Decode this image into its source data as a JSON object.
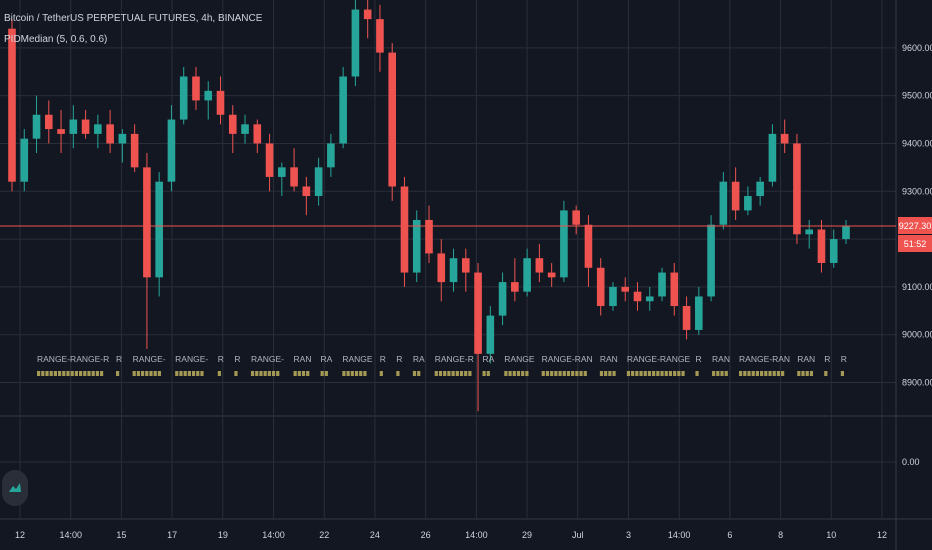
{
  "legend": {
    "symbol_line": "Bitcoin / TetherUS PERPETUAL FUTURES, 4h, BINANCE",
    "indicator_line": "PIDMedian (5, 0.6, 0.6)"
  },
  "price_axis": {
    "ticks": [
      "9600.00",
      "9500.00",
      "9400.00",
      "9300.00",
      "9200.00",
      "9100.00",
      "9000.00",
      "8900.00"
    ],
    "current_price": "9227.30",
    "countdown": "51:52",
    "current_price_color": "#ef5350"
  },
  "indicator_axis": {
    "ticks": [
      "0.00"
    ]
  },
  "time_axis": {
    "ticks": [
      "12",
      "14:00",
      "15",
      "17",
      "19",
      "14:00",
      "22",
      "24",
      "26",
      "14:00",
      "29",
      "Jul",
      "3",
      "14:00",
      "6",
      "8",
      "10",
      "12"
    ]
  },
  "range_labels": [
    "RANGE-RANGE-R",
    "R",
    "RANGE-",
    "RANGE-",
    "R",
    "R",
    "RANGE-",
    "RAN",
    "RA",
    "RANGE",
    "R",
    "R",
    "RA",
    "RANGE-R",
    "RA",
    "RANGE",
    "RANGE-RAN",
    "RAN",
    "RANGE-RANGE",
    "R",
    "RAN",
    "RANGE-RAN",
    "RAN",
    "R",
    "R"
  ],
  "colors": {
    "background": "#131722",
    "grid": "#2a2e39",
    "up": "#26a69a",
    "down": "#ef5350",
    "range_text": "#b2b5be",
    "range_marker": "#a59a55",
    "axis_text": "#d1d4dc"
  },
  "icons": {
    "logo": "tradingview-logo-icon"
  },
  "chart_data": {
    "type": "candlestick",
    "symbol": "Bitcoin / TetherUS PERPETUAL FUTURES",
    "interval": "4h",
    "exchange": "BINANCE",
    "ylim": [
      8830,
      9700
    ],
    "grid": true,
    "last_price": 9227.3,
    "candles": [
      [
        9640,
        9660,
        9300,
        9320
      ],
      [
        9320,
        9430,
        9300,
        9410
      ],
      [
        9410,
        9500,
        9380,
        9460
      ],
      [
        9460,
        9490,
        9400,
        9430
      ],
      [
        9430,
        9470,
        9380,
        9420
      ],
      [
        9420,
        9480,
        9390,
        9450
      ],
      [
        9450,
        9470,
        9410,
        9420
      ],
      [
        9420,
        9460,
        9390,
        9440
      ],
      [
        9440,
        9470,
        9380,
        9400
      ],
      [
        9400,
        9430,
        9360,
        9420
      ],
      [
        9420,
        9440,
        9340,
        9350
      ],
      [
        9350,
        9380,
        8970,
        9120
      ],
      [
        9120,
        9340,
        9080,
        9320
      ],
      [
        9320,
        9480,
        9300,
        9450
      ],
      [
        9450,
        9560,
        9440,
        9540
      ],
      [
        9540,
        9560,
        9470,
        9490
      ],
      [
        9490,
        9530,
        9450,
        9510
      ],
      [
        9510,
        9540,
        9440,
        9460
      ],
      [
        9460,
        9480,
        9380,
        9420
      ],
      [
        9420,
        9460,
        9400,
        9440
      ],
      [
        9440,
        9450,
        9380,
        9400
      ],
      [
        9400,
        9420,
        9300,
        9330
      ],
      [
        9330,
        9360,
        9290,
        9350
      ],
      [
        9350,
        9390,
        9300,
        9310
      ],
      [
        9310,
        9330,
        9250,
        9290
      ],
      [
        9290,
        9370,
        9270,
        9350
      ],
      [
        9350,
        9420,
        9330,
        9400
      ],
      [
        9400,
        9560,
        9390,
        9540
      ],
      [
        9540,
        9700,
        9520,
        9680
      ],
      [
        9680,
        9700,
        9620,
        9660
      ],
      [
        9660,
        9690,
        9550,
        9590
      ],
      [
        9590,
        9610,
        9280,
        9310
      ],
      [
        9310,
        9330,
        9100,
        9130
      ],
      [
        9130,
        9260,
        9110,
        9240
      ],
      [
        9240,
        9270,
        9150,
        9170
      ],
      [
        9170,
        9200,
        9070,
        9110
      ],
      [
        9110,
        9180,
        9090,
        9160
      ],
      [
        9160,
        9180,
        9090,
        9130
      ],
      [
        9130,
        9150,
        8840,
        8960
      ],
      [
        8960,
        9060,
        8940,
        9040
      ],
      [
        9040,
        9130,
        9020,
        9110
      ],
      [
        9110,
        9160,
        9070,
        9090
      ],
      [
        9090,
        9180,
        9080,
        9160
      ],
      [
        9160,
        9190,
        9110,
        9130
      ],
      [
        9130,
        9150,
        9100,
        9120
      ],
      [
        9120,
        9280,
        9110,
        9260
      ],
      [
        9260,
        9270,
        9210,
        9230
      ],
      [
        9230,
        9250,
        9100,
        9140
      ],
      [
        9140,
        9160,
        9040,
        9060
      ],
      [
        9060,
        9110,
        9050,
        9100
      ],
      [
        9100,
        9120,
        9070,
        9090
      ],
      [
        9090,
        9110,
        9050,
        9070
      ],
      [
        9070,
        9100,
        9050,
        9080
      ],
      [
        9080,
        9140,
        9070,
        9130
      ],
      [
        9130,
        9150,
        9040,
        9060
      ],
      [
        9060,
        9080,
        8990,
        9010
      ],
      [
        9010,
        9100,
        9000,
        9080
      ],
      [
        9080,
        9250,
        9070,
        9230
      ],
      [
        9230,
        9340,
        9220,
        9320
      ],
      [
        9320,
        9350,
        9240,
        9260
      ],
      [
        9260,
        9310,
        9250,
        9290
      ],
      [
        9290,
        9330,
        9270,
        9320
      ],
      [
        9320,
        9440,
        9310,
        9420
      ],
      [
        9420,
        9450,
        9380,
        9400
      ],
      [
        9400,
        9420,
        9190,
        9210
      ],
      [
        9210,
        9240,
        9180,
        9220
      ],
      [
        9220,
        9240,
        9130,
        9150
      ],
      [
        9150,
        9220,
        9140,
        9200
      ],
      [
        9200,
        9240,
        9190,
        9227.3
      ]
    ]
  }
}
